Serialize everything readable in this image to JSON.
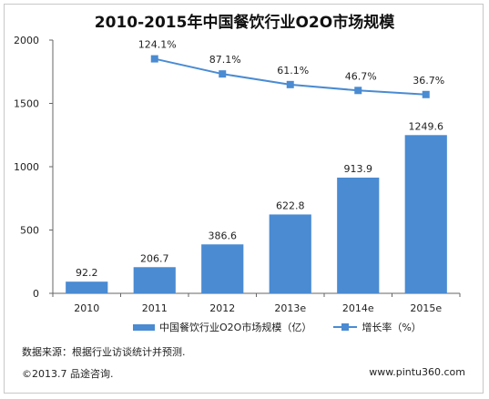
{
  "chart_data": {
    "type": "bar",
    "title": "2010-2015年中国餐饮行业O2O市场规模",
    "categories": [
      "2010",
      "2011",
      "2012",
      "2013e",
      "2014e",
      "2015e"
    ],
    "series": [
      {
        "name": "中国餐饮行业O2O市场规模（亿）",
        "type": "bar",
        "values": [
          92.2,
          206.7,
          386.6,
          622.8,
          913.9,
          1249.6
        ],
        "labels": [
          "92.2",
          "206.7",
          "386.6",
          "622.8",
          "913.9",
          "1249.6"
        ],
        "color": "#4a8bd2"
      },
      {
        "name": "增长率（%）",
        "type": "line",
        "values": [
          null,
          124.1,
          87.1,
          61.1,
          46.7,
          36.7
        ],
        "labels": [
          "",
          "124.1%",
          "87.1%",
          "61.1%",
          "46.7%",
          "36.7%"
        ],
        "color": "#4a8bd2"
      }
    ],
    "yticks": [
      "0",
      "500",
      "1000",
      "1500",
      "2000"
    ],
    "ylim": [
      0,
      2000
    ],
    "y2lim": [
      -450,
      170
    ],
    "grid": false,
    "legend": "bottom"
  },
  "source": "数据来源：根据行业访谈统计并预测.",
  "copyright": "©2013.7 品途咨询.",
  "website": "www.pintu360.com"
}
